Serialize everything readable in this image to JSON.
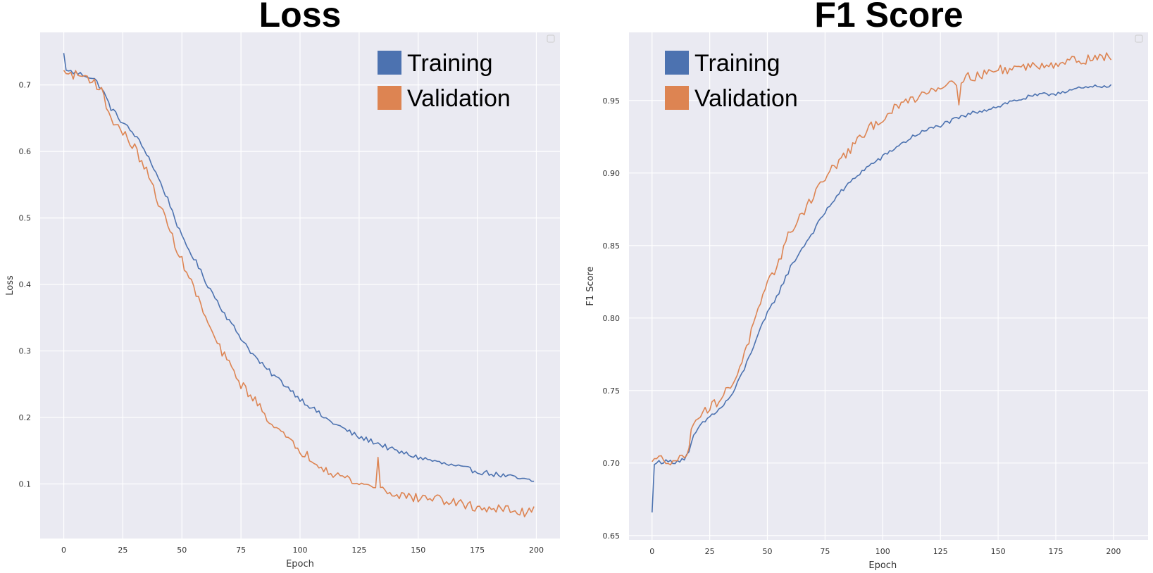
{
  "chart_data": [
    {
      "type": "line",
      "title": "Loss",
      "xlabel": "Epoch",
      "ylabel": "Loss",
      "xlim": [
        -10,
        210
      ],
      "ylim": [
        0.018,
        0.779
      ],
      "xticks": [
        0,
        25,
        50,
        75,
        100,
        125,
        150,
        175,
        200
      ],
      "yticks": [
        0.1,
        0.2,
        0.3,
        0.4,
        0.5,
        0.6,
        0.7
      ],
      "ytick_labels": [
        "0.1",
        "0.2",
        "0.3",
        "0.4",
        "0.5",
        "0.6",
        "0.7"
      ],
      "grid": true,
      "legend": {
        "placement": "top-right",
        "entries": [
          "Training",
          "Validation"
        ]
      },
      "x_keyframes": [
        0,
        1,
        5,
        10,
        13,
        16,
        20,
        25,
        30,
        35,
        40,
        45,
        50,
        55,
        60,
        65,
        70,
        75,
        80,
        85,
        90,
        95,
        100,
        105,
        110,
        115,
        120,
        125,
        130,
        135,
        140,
        145,
        150,
        155,
        160,
        165,
        170,
        175,
        180,
        185,
        190,
        195,
        199
      ],
      "series": [
        {
          "name": "Training",
          "color": "#4c72b0",
          "keyframes": [
            0.748,
            0.722,
            0.718,
            0.714,
            0.708,
            0.695,
            0.665,
            0.643,
            0.625,
            0.598,
            0.56,
            0.52,
            0.47,
            0.44,
            0.405,
            0.375,
            0.345,
            0.32,
            0.295,
            0.275,
            0.26,
            0.245,
            0.228,
            0.215,
            0.2,
            0.19,
            0.18,
            0.17,
            0.165,
            0.158,
            0.15,
            0.145,
            0.14,
            0.136,
            0.131,
            0.127,
            0.123,
            0.119,
            0.116,
            0.113,
            0.11,
            0.106,
            0.104
          ],
          "noise": 0.004
        },
        {
          "name": "Validation",
          "color": "#dd8452",
          "keyframes": [
            0.722,
            0.717,
            0.715,
            0.712,
            0.705,
            0.69,
            0.65,
            0.628,
            0.605,
            0.57,
            0.525,
            0.48,
            0.435,
            0.395,
            0.35,
            0.31,
            0.28,
            0.25,
            0.23,
            0.205,
            0.185,
            0.165,
            0.15,
            0.138,
            0.125,
            0.115,
            0.108,
            0.1,
            0.097,
            0.092,
            0.085,
            0.082,
            0.078,
            0.08,
            0.076,
            0.072,
            0.068,
            0.065,
            0.063,
            0.062,
            0.06,
            0.056,
            0.066
          ],
          "noise": 0.007,
          "annotations": [
            {
              "x": 133,
              "y": 0.14,
              "label": "spike"
            }
          ]
        }
      ]
    },
    {
      "type": "line",
      "title": "F1 Score",
      "xlabel": "Epoch",
      "ylabel": "F1 Score",
      "xlim": [
        -10,
        215
      ],
      "ylim": [
        0.647,
        0.997
      ],
      "xticks": [
        0,
        25,
        50,
        75,
        100,
        125,
        150,
        175,
        200
      ],
      "yticks": [
        0.65,
        0.7,
        0.75,
        0.8,
        0.85,
        0.9,
        0.95
      ],
      "ytick_labels": [
        "0.65",
        "0.70",
        "0.75",
        "0.80",
        "0.85",
        "0.90",
        "0.95"
      ],
      "grid": true,
      "legend": {
        "placement": "top-left",
        "entries": [
          "Training",
          "Validation"
        ]
      },
      "x_keyframes": [
        0,
        1,
        3,
        10,
        14,
        16,
        18,
        20,
        25,
        30,
        35,
        40,
        45,
        50,
        55,
        60,
        65,
        70,
        75,
        80,
        85,
        90,
        95,
        100,
        105,
        110,
        115,
        120,
        125,
        130,
        135,
        140,
        145,
        150,
        155,
        160,
        165,
        170,
        175,
        180,
        185,
        190,
        195,
        199
      ],
      "series": [
        {
          "name": "Training",
          "color": "#4c72b0",
          "keyframes": [
            0.666,
            0.699,
            0.701,
            0.701,
            0.703,
            0.707,
            0.718,
            0.724,
            0.732,
            0.738,
            0.748,
            0.765,
            0.785,
            0.803,
            0.818,
            0.835,
            0.848,
            0.86,
            0.873,
            0.884,
            0.892,
            0.9,
            0.906,
            0.911,
            0.917,
            0.922,
            0.927,
            0.93,
            0.933,
            0.936,
            0.939,
            0.942,
            0.944,
            0.946,
            0.949,
            0.951,
            0.953,
            0.954,
            0.955,
            0.957,
            0.958,
            0.959,
            0.96,
            0.961
          ],
          "noise": 0.0015
        },
        {
          "name": "Validation",
          "color": "#dd8452",
          "keyframes": [
            0.701,
            0.703,
            0.703,
            0.702,
            0.704,
            0.712,
            0.728,
            0.734,
            0.738,
            0.745,
            0.755,
            0.775,
            0.8,
            0.822,
            0.84,
            0.86,
            0.872,
            0.885,
            0.897,
            0.906,
            0.915,
            0.923,
            0.932,
            0.938,
            0.944,
            0.949,
            0.953,
            0.957,
            0.96,
            0.963,
            0.965,
            0.967,
            0.969,
            0.971,
            0.972,
            0.973,
            0.974,
            0.975,
            0.976,
            0.977,
            0.978,
            0.979,
            0.981,
            0.978
          ],
          "noise": 0.0035,
          "annotations": [
            {
              "x": 133,
              "y": 0.947,
              "label": "dip"
            }
          ]
        }
      ]
    }
  ]
}
